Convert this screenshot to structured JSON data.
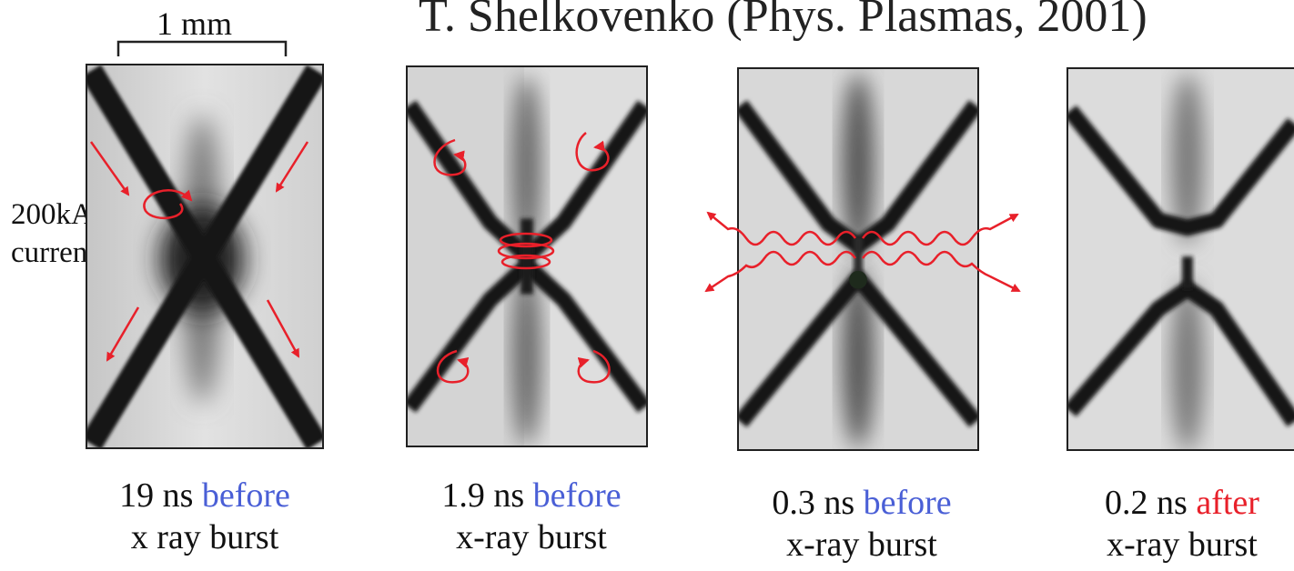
{
  "header": {
    "text": "T. Shelkovenko (Phys. Plasmas, 2001)"
  },
  "scale_bar": {
    "label": "1 mm"
  },
  "annotation": {
    "line1": "200kA",
    "line2": "current"
  },
  "colors": {
    "marker": "#e8202a",
    "before": "#4a5fd6",
    "after": "#e8202a"
  },
  "panels": [
    {
      "time": "19 ns",
      "when": "before",
      "event": "x ray burst"
    },
    {
      "time": "1.9 ns",
      "when": "before",
      "event": "x-ray burst"
    },
    {
      "time": "0.3 ns",
      "when": "before",
      "event": "x-ray burst"
    },
    {
      "time": "0.2 ns",
      "when": "after",
      "event": "x-ray burst"
    }
  ]
}
